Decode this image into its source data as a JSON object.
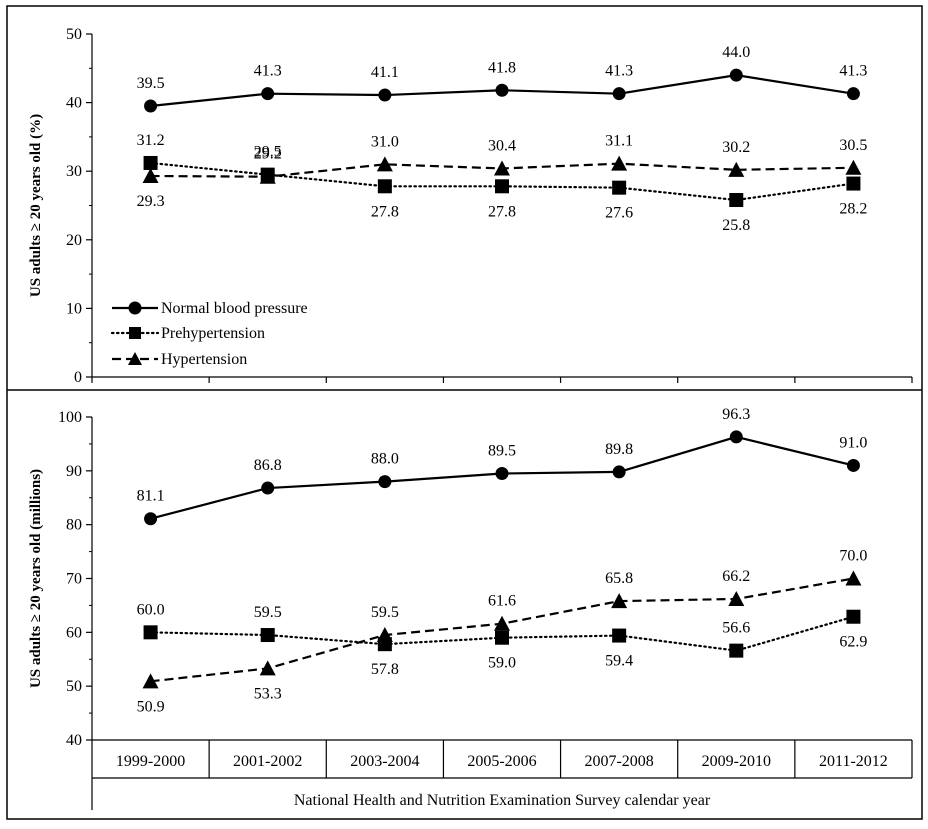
{
  "chart_data": [
    {
      "type": "line",
      "ylabel": "US adults ≥ 20 years old (%)",
      "ylim": [
        0,
        50
      ],
      "yticks": [
        0,
        10,
        20,
        30,
        40,
        50
      ],
      "categories": [
        "1999-2000",
        "2001-2002",
        "2003-2004",
        "2005-2006",
        "2007-2008",
        "2009-2010",
        "2011-2012"
      ],
      "legend": "bottom-left",
      "series": [
        {
          "name": "Normal blood pressure",
          "marker": "circle",
          "line": "solid",
          "values": [
            39.5,
            41.3,
            41.1,
            41.8,
            41.3,
            44.0,
            41.3
          ],
          "labels": [
            "39.5",
            "41.3",
            "41.1",
            "41.8",
            "41.3",
            "44.0",
            "41.3"
          ]
        },
        {
          "name": "Prehypertension",
          "marker": "square",
          "line": "dotted",
          "values": [
            31.2,
            29.5,
            27.8,
            27.8,
            27.6,
            25.8,
            28.2
          ],
          "labels": [
            "31.2",
            "29.5",
            "27.8",
            "27.8",
            "27.6",
            "25.8",
            "28.2"
          ]
        },
        {
          "name": "Hypertension",
          "marker": "triangle",
          "line": "dashed",
          "values": [
            29.3,
            29.2,
            31.0,
            30.4,
            31.1,
            30.2,
            30.5
          ],
          "labels": [
            "29.3",
            "29.2",
            "31.0",
            "30.4",
            "31.1",
            "30.2",
            "30.5"
          ]
        }
      ]
    },
    {
      "type": "line",
      "ylabel": "US adults ≥ 20 years old (millions)",
      "ylim": [
        40,
        100
      ],
      "yticks": [
        40,
        50,
        60,
        70,
        80,
        90,
        100
      ],
      "categories": [
        "1999-2000",
        "2001-2002",
        "2003-2004",
        "2005-2006",
        "2007-2008",
        "2009-2010",
        "2011-2012"
      ],
      "xlabel": "National Health and Nutrition Examination Survey calendar year",
      "series": [
        {
          "name": "Normal blood pressure",
          "marker": "circle",
          "line": "solid",
          "values": [
            81.1,
            86.8,
            88.0,
            89.5,
            89.8,
            96.3,
            91.0
          ],
          "labels": [
            "81.1",
            "86.8",
            "88.0",
            "89.5",
            "89.8",
            "96.3",
            "91.0"
          ]
        },
        {
          "name": "Prehypertension",
          "marker": "square",
          "line": "dotted",
          "values": [
            60.0,
            59.5,
            57.8,
            59.0,
            59.4,
            56.6,
            62.9
          ],
          "labels": [
            "60.0",
            "59.5",
            "57.8",
            "59.0",
            "59.4",
            "56.6",
            "62.9"
          ]
        },
        {
          "name": "Hypertension",
          "marker": "triangle",
          "line": "dashed",
          "values": [
            50.9,
            53.3,
            59.5,
            61.6,
            65.8,
            66.2,
            70.0
          ],
          "labels": [
            "50.9",
            "53.3",
            "59.5",
            "61.6",
            "65.8",
            "66.2",
            "70.0"
          ]
        }
      ]
    }
  ]
}
